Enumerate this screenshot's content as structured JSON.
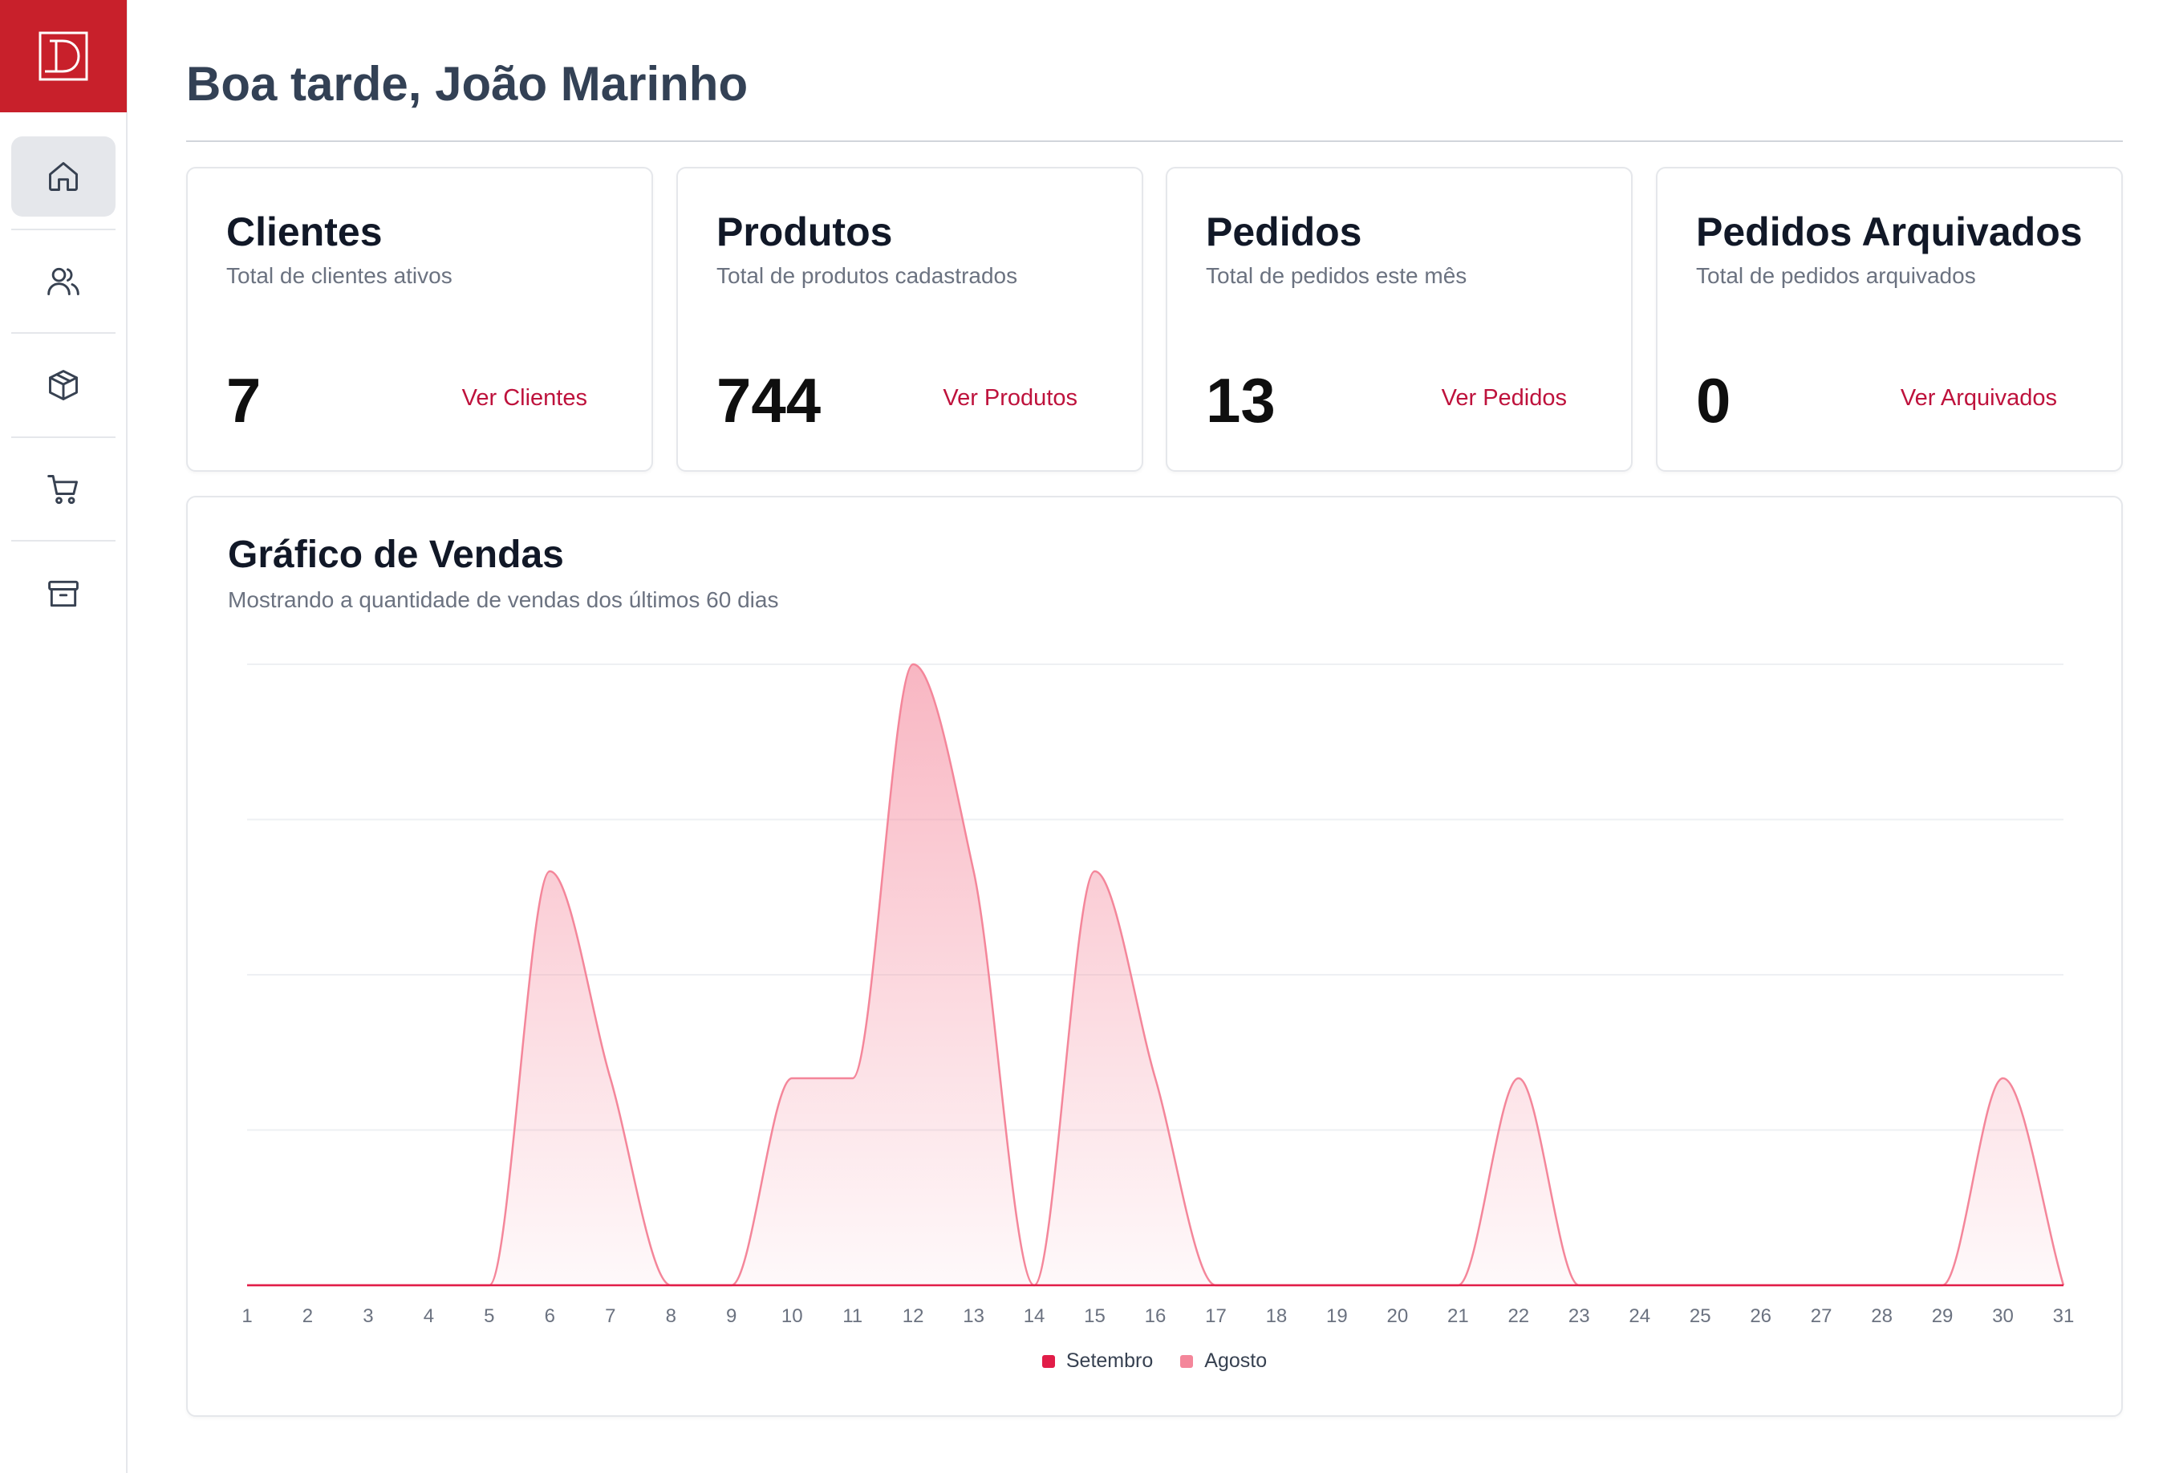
{
  "greeting": "Boa tarde, João Marinho",
  "sidebar": {
    "items": [
      {
        "name": "home",
        "icon": "home-icon",
        "active": true
      },
      {
        "name": "clientes",
        "icon": "users-icon",
        "active": false
      },
      {
        "name": "produtos",
        "icon": "box-icon",
        "active": false
      },
      {
        "name": "pedidos",
        "icon": "cart-icon",
        "active": false
      },
      {
        "name": "arquivados",
        "icon": "archive-icon",
        "active": false
      }
    ]
  },
  "cards": [
    {
      "title": "Clientes",
      "subtitle": "Total de clientes ativos",
      "value": "7",
      "link": "Ver Clientes"
    },
    {
      "title": "Produtos",
      "subtitle": "Total de produtos cadastrados",
      "value": "744",
      "link": "Ver Produtos"
    },
    {
      "title": "Pedidos",
      "subtitle": "Total de pedidos este mês",
      "value": "13",
      "link": "Ver Pedidos"
    },
    {
      "title": "Pedidos Arquivados",
      "subtitle": "Total de pedidos arquivados",
      "value": "0",
      "link": "Ver Arquivados"
    }
  ],
  "chart_card": {
    "title": "Gráfico de Vendas",
    "subtitle": "Mostrando a quantidade de vendas dos últimos 60 dias"
  },
  "colors": {
    "brand": "#c8202b",
    "link": "#be123c",
    "setembro": "#e11d48",
    "agosto": "#f4869a"
  },
  "chart_data": {
    "type": "area",
    "x": [
      "1",
      "2",
      "3",
      "4",
      "5",
      "6",
      "7",
      "8",
      "9",
      "10",
      "11",
      "12",
      "13",
      "14",
      "15",
      "16",
      "17",
      "18",
      "19",
      "20",
      "21",
      "22",
      "23",
      "24",
      "25",
      "26",
      "27",
      "28",
      "29",
      "30",
      "31"
    ],
    "series": [
      {
        "name": "Setembro",
        "values": [
          0,
          0,
          0,
          0,
          0,
          0,
          0,
          0,
          0,
          0,
          0,
          0,
          0,
          0,
          0,
          0,
          0,
          0,
          0,
          0,
          0,
          0,
          0,
          0,
          0,
          0,
          0,
          0,
          0,
          0,
          0
        ]
      },
      {
        "name": "Agosto",
        "values": [
          0,
          0,
          0,
          0,
          0,
          2,
          1,
          0,
          0,
          1,
          1,
          3,
          2,
          0,
          2,
          1,
          0,
          0,
          0,
          0,
          0,
          1,
          0,
          0,
          0,
          0,
          0,
          0,
          0,
          1,
          0
        ]
      }
    ],
    "ylim": [
      0,
      3
    ],
    "grid": true,
    "legend": "bottom-center"
  }
}
